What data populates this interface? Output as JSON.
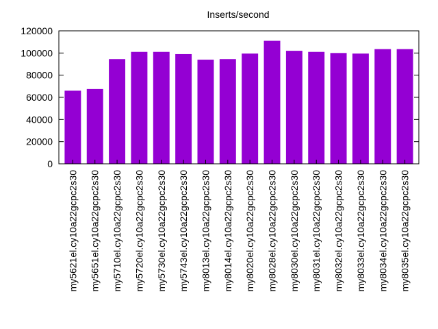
{
  "chart_data": {
    "type": "bar",
    "title": "Inserts/second",
    "xlabel": "",
    "ylabel": "",
    "ylim": [
      0,
      120000
    ],
    "yticks": [
      0,
      20000,
      40000,
      60000,
      80000,
      100000,
      120000
    ],
    "grid": false,
    "bar_color": "#9400d3",
    "categories": [
      "my5621el.cy10a22gcpc2s30",
      "my5651el.cy10a22gcpc2s30",
      "my5710el.cy10a22gcpc2s30",
      "my5720el.cy10a22gcpc2s30",
      "my5730el.cy10a22gcpc2s30",
      "my5743el.cy10a22gcpc2s30",
      "my8013el.cy10a22gcpc2s30",
      "my8014el.cy10a22gcpc2s30",
      "my8020el.cy10a22gcpc2s30",
      "my8028el.cy10a22gcpc2s30",
      "my8030el.cy10a22gcpc2s30",
      "my8031el.cy10a22gcpc2s30",
      "my8032el.cy10a22gcpc2s30",
      "my8033el.cy10a22gcpc2s30",
      "my8034el.cy10a22gcpc2s30",
      "my8035el.cy10a22gcpc2s30"
    ],
    "values": [
      66000,
      67500,
      94500,
      101000,
      101000,
      99000,
      94000,
      94500,
      99500,
      111000,
      102000,
      101000,
      100000,
      99500,
      103500,
      103500
    ]
  }
}
